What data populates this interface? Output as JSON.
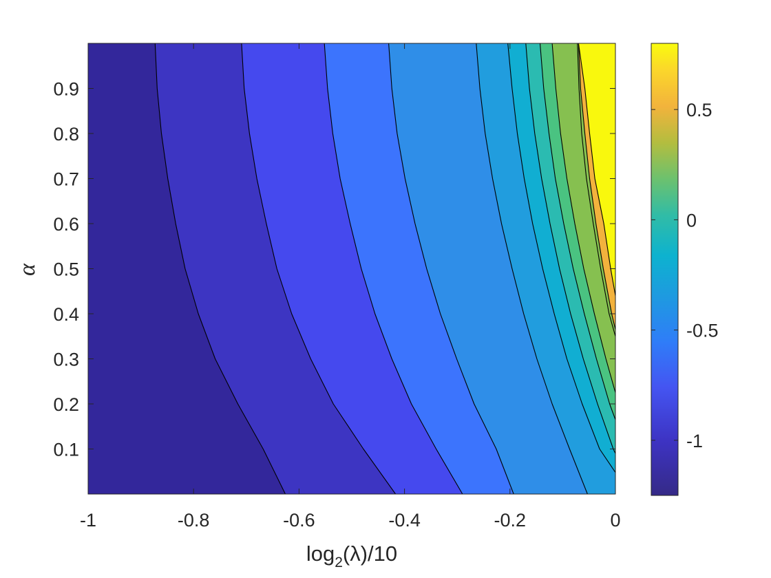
{
  "chart_data": {
    "type": "contour",
    "xlabel": {
      "prefix": "log",
      "sub": "2",
      "greek": "λ",
      "suffix": "/10"
    },
    "ylabel": "α",
    "xlim": [
      -1,
      0
    ],
    "ylim": [
      0,
      1
    ],
    "x_ticks": [
      -1,
      -0.8,
      -0.6,
      -0.4,
      -0.2,
      0
    ],
    "x_tick_labels": [
      "-1",
      "-0.8",
      "-0.6",
      "-0.4",
      "-0.2",
      "0"
    ],
    "y_ticks": [
      0.1,
      0.2,
      0.3,
      0.4,
      0.5,
      0.6,
      0.7,
      0.8,
      0.9
    ],
    "y_tick_labels": [
      "0.1",
      "0.2",
      "0.3",
      "0.4",
      "0.5",
      "0.6",
      "0.7",
      "0.8",
      "0.9"
    ],
    "colorbar": {
      "limits": [
        -1.25,
        0.8
      ],
      "ticks": [
        -1,
        -0.5,
        0,
        0.5
      ],
      "tick_labels": [
        "-1",
        "-0.5",
        "0",
        "0.5"
      ],
      "colormap": "parula"
    },
    "levels": [
      -1.1,
      -0.9,
      -0.7,
      -0.5,
      -0.3,
      -0.2,
      -0.1,
      0,
      0.1,
      0.3,
      0.5,
      0.7
    ],
    "band_colors": [
      "#33279b",
      "#3d35c2",
      "#4549ee",
      "#3c74fd",
      "#2f8ee8",
      "#219dde",
      "#11aed2",
      "#2bbbb1",
      "#4ac381",
      "#86c050",
      "#c8b830",
      "#f2b23d",
      "#fad72a",
      "#f9f80d"
    ],
    "contour_lines": [
      {
        "level": -1.1,
        "points": [
          [
            -0.873,
            1.0
          ],
          [
            -0.869,
            0.9
          ],
          [
            -0.861,
            0.8
          ],
          [
            -0.849,
            0.7
          ],
          [
            -0.834,
            0.6
          ],
          [
            -0.816,
            0.5
          ],
          [
            -0.791,
            0.4
          ],
          [
            -0.759,
            0.3
          ],
          [
            -0.716,
            0.2
          ],
          [
            -0.668,
            0.1
          ],
          [
            -0.626,
            0.0
          ]
        ]
      },
      {
        "level": -0.9,
        "points": [
          [
            -0.709,
            1.0
          ],
          [
            -0.704,
            0.9
          ],
          [
            -0.694,
            0.8
          ],
          [
            -0.68,
            0.7
          ],
          [
            -0.662,
            0.6
          ],
          [
            -0.642,
            0.5
          ],
          [
            -0.614,
            0.4
          ],
          [
            -0.578,
            0.3
          ],
          [
            -0.535,
            0.2
          ],
          [
            -0.478,
            0.1
          ],
          [
            -0.417,
            0.0
          ]
        ]
      },
      {
        "level": -0.7,
        "points": [
          [
            -0.552,
            1.0
          ],
          [
            -0.546,
            0.9
          ],
          [
            -0.536,
            0.8
          ],
          [
            -0.522,
            0.7
          ],
          [
            -0.503,
            0.6
          ],
          [
            -0.482,
            0.5
          ],
          [
            -0.456,
            0.4
          ],
          [
            -0.424,
            0.3
          ],
          [
            -0.387,
            0.2
          ],
          [
            -0.34,
            0.1
          ],
          [
            -0.29,
            0.0
          ]
        ]
      },
      {
        "level": -0.5,
        "points": [
          [
            -0.43,
            1.0
          ],
          [
            -0.424,
            0.9
          ],
          [
            -0.414,
            0.8
          ],
          [
            -0.399,
            0.7
          ],
          [
            -0.38,
            0.6
          ],
          [
            -0.358,
            0.5
          ],
          [
            -0.332,
            0.4
          ],
          [
            -0.301,
            0.3
          ],
          [
            -0.268,
            0.2
          ],
          [
            -0.226,
            0.1
          ],
          [
            -0.193,
            0.0
          ]
        ]
      },
      {
        "level": -0.3,
        "points": [
          [
            -0.264,
            1.0
          ],
          [
            -0.257,
            0.9
          ],
          [
            -0.247,
            0.8
          ],
          [
            -0.233,
            0.7
          ],
          [
            -0.216,
            0.6
          ],
          [
            -0.196,
            0.5
          ],
          [
            -0.174,
            0.4
          ],
          [
            -0.149,
            0.3
          ],
          [
            -0.12,
            0.2
          ],
          [
            -0.087,
            0.1
          ],
          [
            -0.053,
            0.0
          ]
        ]
      },
      {
        "level": -0.2,
        "points": [
          [
            -0.204,
            1.0
          ],
          [
            -0.196,
            0.9
          ],
          [
            -0.186,
            0.8
          ],
          [
            -0.173,
            0.7
          ],
          [
            -0.157,
            0.6
          ],
          [
            -0.138,
            0.5
          ],
          [
            -0.116,
            0.4
          ],
          [
            -0.092,
            0.3
          ],
          [
            -0.063,
            0.2
          ],
          [
            -0.03,
            0.1
          ],
          [
            0.0,
            0.048
          ]
        ]
      },
      {
        "level": -0.1,
        "points": [
          [
            -0.17,
            1.0
          ],
          [
            -0.163,
            0.9
          ],
          [
            -0.153,
            0.8
          ],
          [
            -0.14,
            0.7
          ],
          [
            -0.124,
            0.6
          ],
          [
            -0.106,
            0.5
          ],
          [
            -0.085,
            0.4
          ],
          [
            -0.061,
            0.3
          ],
          [
            -0.034,
            0.2
          ],
          [
            -0.004,
            0.1
          ],
          [
            0.0,
            0.09
          ]
        ]
      },
      {
        "level": 0.0,
        "points": [
          [
            -0.143,
            1.0
          ],
          [
            -0.136,
            0.9
          ],
          [
            -0.126,
            0.8
          ],
          [
            -0.114,
            0.7
          ],
          [
            -0.098,
            0.6
          ],
          [
            -0.08,
            0.5
          ],
          [
            -0.059,
            0.4
          ],
          [
            -0.036,
            0.3
          ],
          [
            -0.011,
            0.2
          ],
          [
            0.0,
            0.165
          ]
        ]
      },
      {
        "level": 0.1,
        "points": [
          [
            -0.12,
            1.0
          ],
          [
            -0.113,
            0.9
          ],
          [
            -0.104,
            0.8
          ],
          [
            -0.092,
            0.7
          ],
          [
            -0.077,
            0.6
          ],
          [
            -0.06,
            0.5
          ],
          [
            -0.04,
            0.4
          ],
          [
            -0.018,
            0.3
          ],
          [
            0.0,
            0.225
          ]
        ]
      },
      {
        "level": 0.3,
        "points": [
          [
            -0.07,
            1.0
          ],
          [
            -0.066,
            0.9
          ],
          [
            -0.058,
            0.8
          ],
          [
            -0.049,
            0.7
          ],
          [
            -0.037,
            0.6
          ],
          [
            -0.023,
            0.5
          ],
          [
            -0.007,
            0.4
          ],
          [
            0.0,
            0.365
          ]
        ]
      },
      {
        "level": 0.5,
        "points": [
          [
            -0.072,
            1.0
          ],
          [
            -0.069,
            0.9
          ],
          [
            -0.064,
            0.8
          ],
          [
            -0.055,
            0.7
          ],
          [
            -0.042,
            0.6
          ],
          [
            -0.028,
            0.5
          ],
          [
            -0.012,
            0.4
          ],
          [
            0.0,
            0.35
          ]
        ]
      },
      {
        "level": 0.7,
        "points": [
          [
            -0.07,
            1.0
          ],
          [
            -0.058,
            0.9
          ],
          [
            -0.049,
            0.8
          ],
          [
            -0.039,
            0.7
          ],
          [
            -0.022,
            0.6
          ],
          [
            -0.009,
            0.5
          ],
          [
            0.0,
            0.44
          ]
        ]
      }
    ]
  }
}
